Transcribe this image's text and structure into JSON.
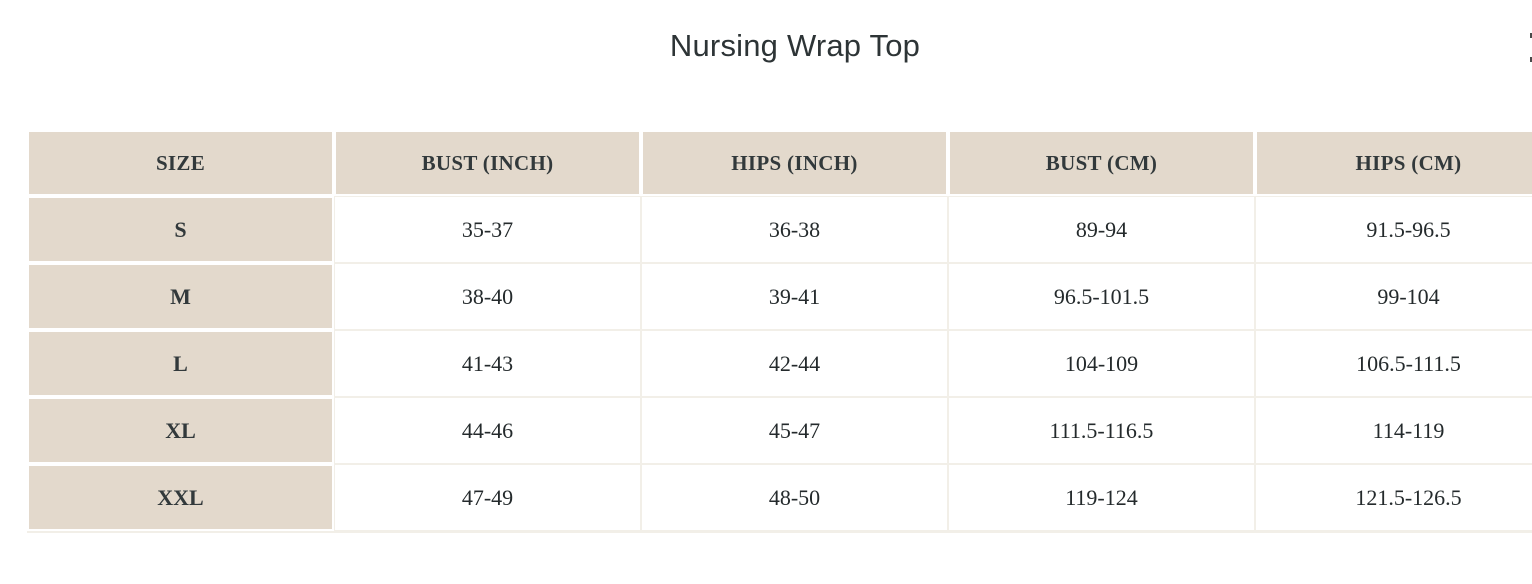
{
  "page": {
    "title": "Nursing Wrap Top"
  },
  "colors": {
    "header_background": "#e3d9cc",
    "data_cell_background": "#ffffff",
    "grid_line": "#f2efe8",
    "cell_gap": "#ffffff",
    "title_text": "#2d3436",
    "table_text": "#242a2c"
  },
  "size_chart": {
    "columns": [
      "SIZE",
      "BUST (INCH)",
      "HIPS (INCH)",
      "BUST (CM)",
      "HIPS (CM)"
    ],
    "rows": [
      {
        "size": "S",
        "bust_inch": "35-37",
        "hips_inch": "36-38",
        "bust_cm": "89-94",
        "hips_cm": "91.5-96.5"
      },
      {
        "size": "M",
        "bust_inch": "38-40",
        "hips_inch": "39-41",
        "bust_cm": "96.5-101.5",
        "hips_cm": "99-104"
      },
      {
        "size": "L",
        "bust_inch": "41-43",
        "hips_inch": "42-44",
        "bust_cm": "104-109",
        "hips_cm": "106.5-111.5"
      },
      {
        "size": "XL",
        "bust_inch": "44-46",
        "hips_inch": "45-47",
        "bust_cm": "111.5-116.5",
        "hips_cm": "114-119"
      },
      {
        "size": "XXL",
        "bust_inch": "47-49",
        "hips_inch": "48-50",
        "bust_cm": "119-124",
        "hips_cm": "121.5-126.5"
      }
    ]
  }
}
